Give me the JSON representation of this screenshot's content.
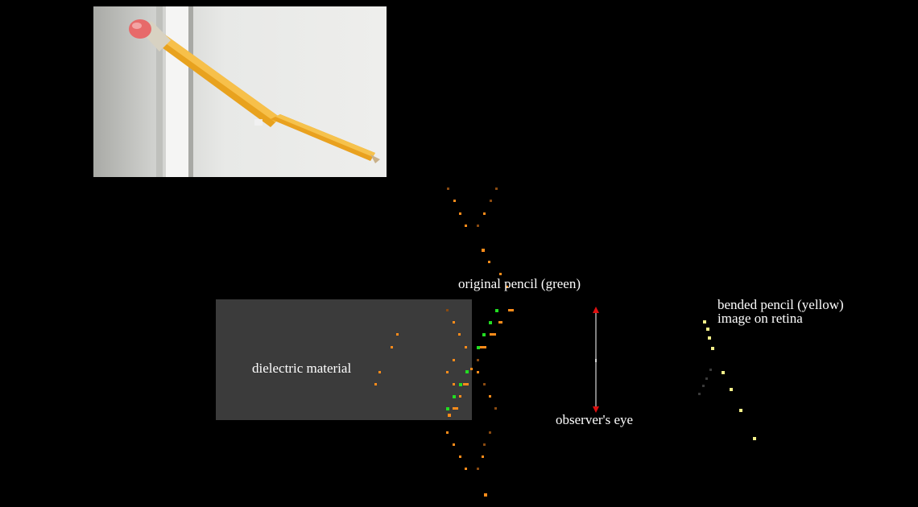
{
  "labels": {
    "original_pencil": "original pencil (green)",
    "dielectric": "dielectric material",
    "observer": "observer's eye",
    "bended_line1": "bended pencil (yellow)",
    "bended_line2": "image on retina"
  },
  "colors": {
    "background": "#000000",
    "dielectric": "#3b3b3b",
    "ray_bright": "#ff8c1a",
    "ray_dim": "#8a4a10",
    "original_pencil": "#22dd22",
    "retina_image": "#f4f08a",
    "eye_axis": "#808080",
    "eye_arrow": "#e01010"
  },
  "photo": {
    "description_icon": "bent-pencil-in-water-photo"
  }
}
